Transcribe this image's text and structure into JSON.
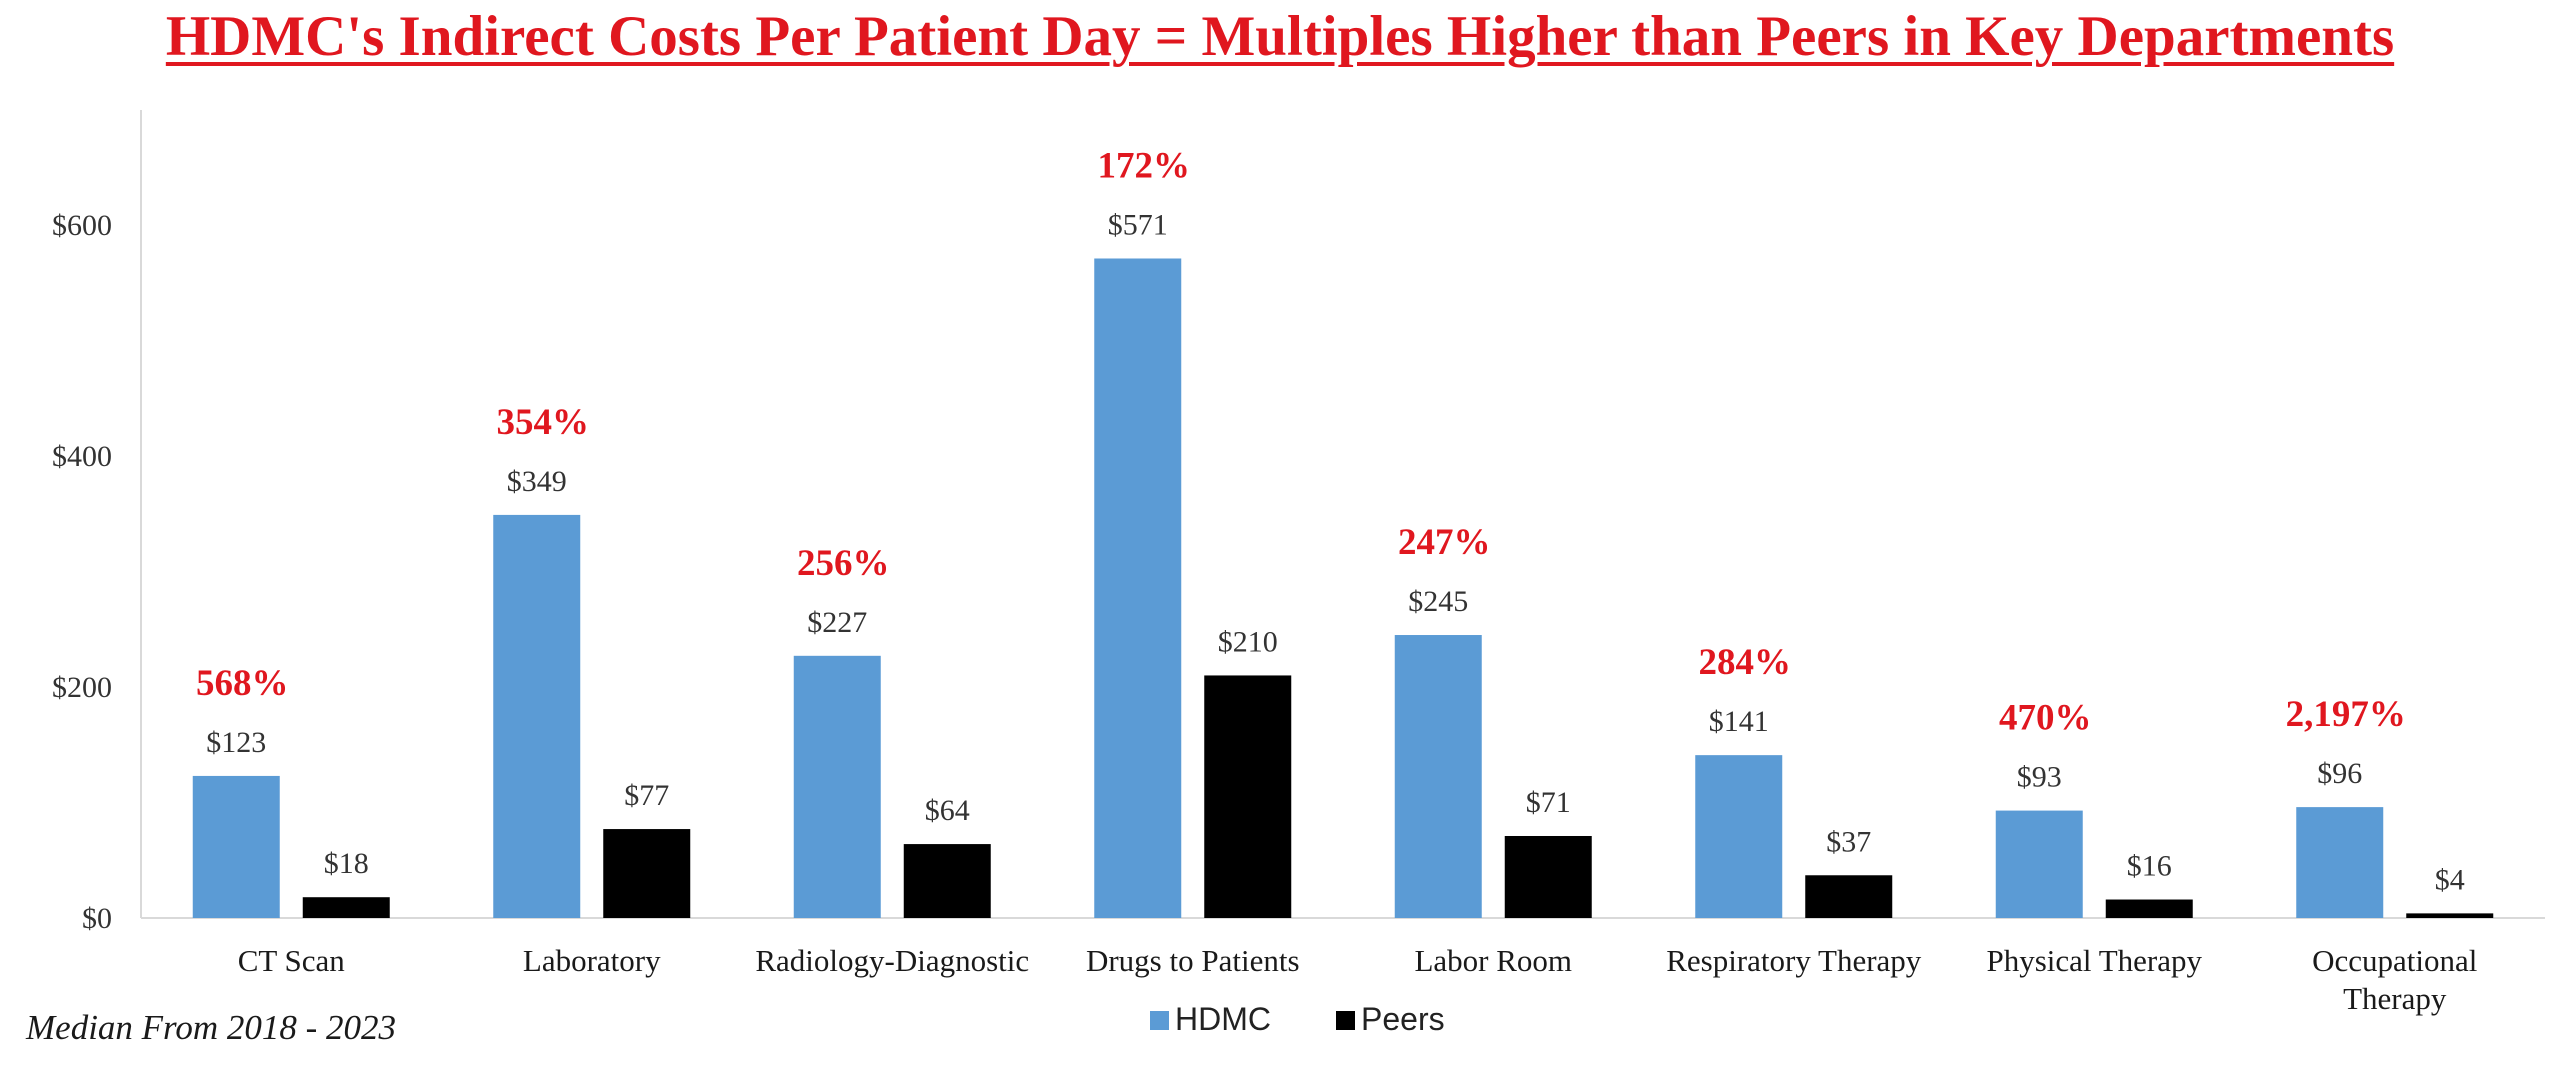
{
  "title": "HDMC's Indirect Costs Per Patient Day = Multiples Higher than Peers in Key Departments",
  "footnote": "Median From 2018 - 2023",
  "colors": {
    "hdmc": "#5b9bd5",
    "peers": "#000000",
    "percent_label": "#e0171f",
    "axis": "#d9d9d9"
  },
  "chart_data": {
    "type": "bar",
    "title": "HDMC's Indirect Costs Per Patient Day = Multiples Higher than Peers in Key Departments",
    "xlabel": "",
    "ylabel": "",
    "ylim": [
      0,
      700
    ],
    "yticks": [
      0,
      200,
      400,
      600
    ],
    "ytick_labels": [
      "$0",
      "$200",
      "$400",
      "$600"
    ],
    "grid": false,
    "legend_position": "bottom",
    "categories": [
      [
        "CT Scan"
      ],
      [
        "Laboratory"
      ],
      [
        "Radiology-Diagnostic"
      ],
      [
        "Drugs to Patients"
      ],
      [
        "Labor Room"
      ],
      [
        "Respiratory Therapy"
      ],
      [
        "Physical Therapy"
      ],
      [
        "Occupational",
        "Therapy"
      ]
    ],
    "series": [
      {
        "name": "HDMC",
        "color": "#5b9bd5",
        "values": [
          123,
          349,
          227,
          571,
          245,
          141,
          93,
          96
        ],
        "labels": [
          "$123",
          "$349",
          "$227",
          "$571",
          "$245",
          "$141",
          "$93",
          "$96"
        ]
      },
      {
        "name": "Peers",
        "color": "#000000",
        "values": [
          18,
          77,
          64,
          210,
          71,
          37,
          16,
          4
        ],
        "labels": [
          "$18",
          "$77",
          "$64",
          "$210",
          "$71",
          "$37",
          "$16",
          "$4"
        ]
      }
    ],
    "annotations": [
      "568%",
      "354%",
      "256%",
      "172%",
      "247%",
      "284%",
      "470%",
      "2,197%"
    ]
  }
}
